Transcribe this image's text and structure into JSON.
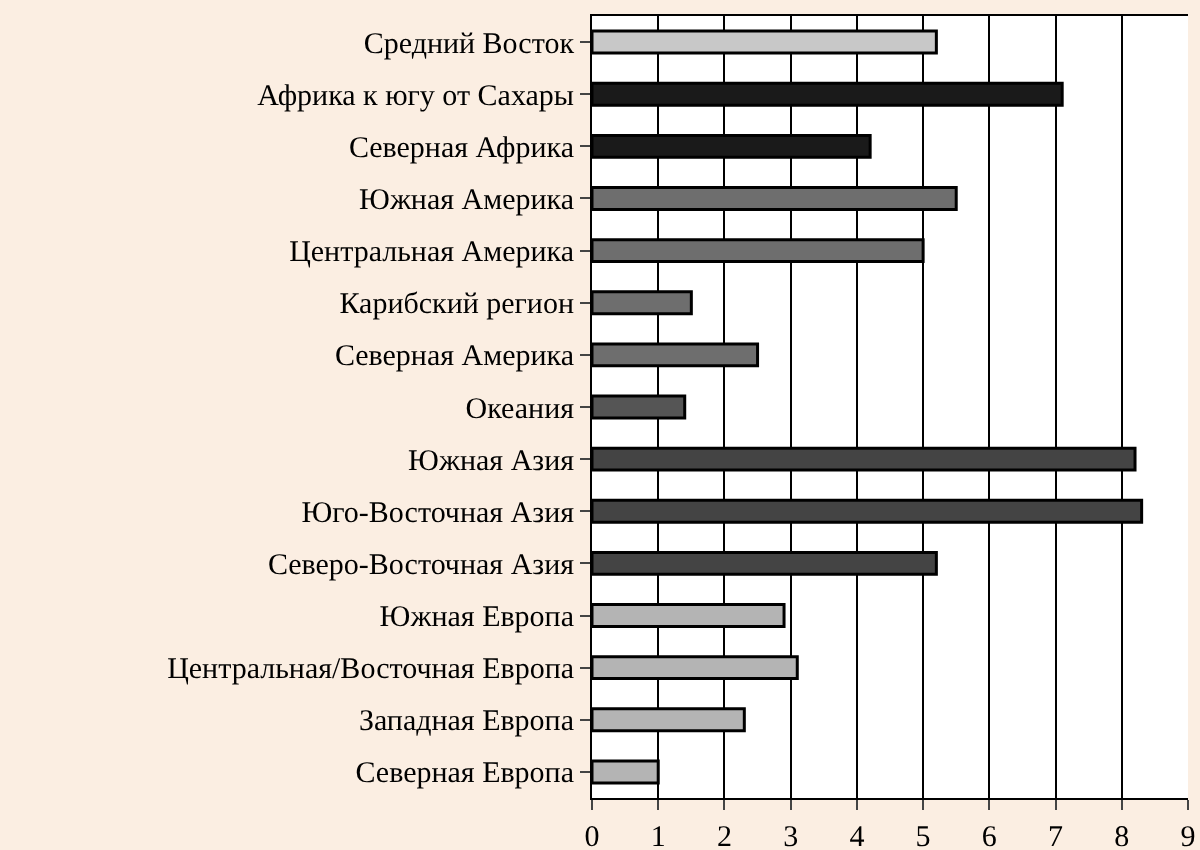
{
  "chart_data": {
    "type": "bar",
    "orientation": "horizontal",
    "categories": [
      "Средний Восток",
      "Африка к югу от Сахары",
      "Северная Африка",
      "Южная Америка",
      "Центральная Америка",
      "Карибский регион",
      "Северная Америка",
      "Океания",
      "Южная Азия",
      "Юго-Восточная Азия",
      "Северо-Восточная Азия",
      "Южная Европа",
      "Центральная/Восточная Европа",
      "Западная Европа",
      "Северная Европа"
    ],
    "values": [
      5.2,
      7.1,
      4.2,
      5.5,
      5.0,
      1.5,
      2.5,
      1.4,
      8.2,
      8.3,
      5.2,
      2.9,
      3.1,
      2.3,
      1.0
    ],
    "colors": [
      "#c8c8c8",
      "#1a1a1a",
      "#1a1a1a",
      "#6e6e6e",
      "#6e6e6e",
      "#6e6e6e",
      "#6e6e6e",
      "#555555",
      "#444444",
      "#444444",
      "#444444",
      "#b4b4b4",
      "#b4b4b4",
      "#b4b4b4",
      "#b4b4b4"
    ],
    "xlim": [
      0,
      9
    ],
    "xticks": [
      0,
      1,
      2,
      3,
      4,
      5,
      6,
      7,
      8,
      9
    ],
    "grid": "x"
  }
}
